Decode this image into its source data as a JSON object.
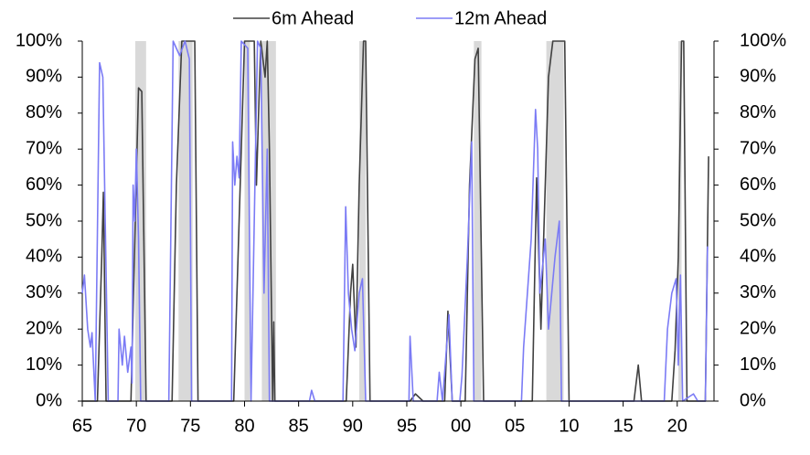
{
  "chart_data": {
    "type": "line",
    "xlim": [
      1965,
      2023.4
    ],
    "xticks": [
      {
        "value": 1965,
        "label": "65"
      },
      {
        "value": 1970,
        "label": "70"
      },
      {
        "value": 1975,
        "label": "75"
      },
      {
        "value": 1980,
        "label": "80"
      },
      {
        "value": 1985,
        "label": "85"
      },
      {
        "value": 1990,
        "label": "90"
      },
      {
        "value": 1995,
        "label": "95"
      },
      {
        "value": 2000,
        "label": "00"
      },
      {
        "value": 2005,
        "label": "05"
      },
      {
        "value": 2010,
        "label": "10"
      },
      {
        "value": 2015,
        "label": "15"
      },
      {
        "value": 2020,
        "label": "20"
      }
    ],
    "ylim": [
      0,
      100
    ],
    "yticks": [
      {
        "value": 0,
        "label": "0%"
      },
      {
        "value": 10,
        "label": "10%"
      },
      {
        "value": 20,
        "label": "20%"
      },
      {
        "value": 30,
        "label": "30%"
      },
      {
        "value": 40,
        "label": "40%"
      },
      {
        "value": 50,
        "label": "50%"
      },
      {
        "value": 60,
        "label": "60%"
      },
      {
        "value": 70,
        "label": "70%"
      },
      {
        "value": 80,
        "label": "80%"
      },
      {
        "value": 90,
        "label": "90%"
      },
      {
        "value": 100,
        "label": "100%"
      }
    ],
    "y2lim": [
      0,
      100
    ],
    "y2ticks": [
      {
        "value": 0,
        "label": "0%"
      },
      {
        "value": 10,
        "label": "10%"
      },
      {
        "value": 20,
        "label": "20%"
      },
      {
        "value": 30,
        "label": "30%"
      },
      {
        "value": 40,
        "label": "40%"
      },
      {
        "value": 50,
        "label": "50%"
      },
      {
        "value": 60,
        "label": "60%"
      },
      {
        "value": 70,
        "label": "70%"
      },
      {
        "value": 80,
        "label": "80%"
      },
      {
        "value": 90,
        "label": "90%"
      },
      {
        "value": 100,
        "label": "100%"
      }
    ],
    "shading_color": "#d9d9d9",
    "recessions": [
      [
        1969.9,
        1970.9
      ],
      [
        1973.9,
        1975.2
      ],
      [
        1980.0,
        1980.5
      ],
      [
        1981.6,
        1982.9
      ],
      [
        1990.6,
        1991.2
      ],
      [
        2001.2,
        2001.9
      ],
      [
        2007.9,
        2009.5
      ],
      [
        2020.1,
        2020.4
      ]
    ],
    "legend": "top",
    "series": [
      {
        "name": "6m Ahead",
        "color": "#404040",
        "x": [
          1965,
          1966.4,
          1966.8,
          1966.95,
          1967.2,
          1969.5,
          1969.9,
          1970.2,
          1970.5,
          1970.9,
          1973.3,
          1973.7,
          1974.2,
          1975.4,
          1975.7,
          1979.0,
          1979.4,
          1980.0,
          1980.9,
          1981.1,
          1981.5,
          1981.9,
          1982.1,
          1982.3,
          1982.6,
          1982.7,
          1982.8,
          1989.4,
          1989.8,
          1990.0,
          1990.3,
          1990.6,
          1991.0,
          1991.2,
          1991.6,
          1995.3,
          1995.8,
          1996.5,
          1998.5,
          1998.8,
          1999.2,
          2000.4,
          2000.8,
          2001.3,
          2001.6,
          2002.1,
          2006.6,
          2007.0,
          2007.4,
          2008.1,
          2008.5,
          2009.6,
          2010.0,
          2016.0,
          2016.4,
          2016.7,
          2019.5,
          2019.8,
          2020.1,
          2020.4,
          2020.6,
          2020.9,
          2022.6,
          2022.9
        ],
        "values": [
          0,
          0,
          40,
          58,
          0,
          0,
          50,
          87,
          86,
          0,
          0,
          60,
          100,
          100,
          0,
          0,
          40,
          100,
          100,
          60,
          100,
          90,
          100,
          70,
          0,
          22,
          0,
          0,
          30,
          38,
          15,
          60,
          100,
          100,
          0,
          0,
          2,
          0,
          0,
          25,
          0,
          0,
          60,
          95,
          98,
          0,
          0,
          62,
          20,
          90,
          100,
          100,
          0,
          0,
          10,
          0,
          0,
          14,
          40,
          100,
          100,
          0,
          0,
          68
        ]
      },
      {
        "name": "12m Ahead",
        "color": "#7b7bf5",
        "x": [
          1965,
          1965.2,
          1965.5,
          1965.75,
          1965.9,
          1966.2,
          1966.6,
          1966.9,
          1967.4,
          1968.3,
          1968.4,
          1968.7,
          1968.9,
          1969.2,
          1969.5,
          1969.6,
          1969.7,
          1969.85,
          1970.0,
          1970.2,
          1970.4,
          1973.0,
          1973.4,
          1974.0,
          1974.5,
          1974.9,
          1975.1,
          1978.8,
          1978.9,
          1979.1,
          1979.3,
          1979.5,
          1979.7,
          1980.3,
          1980.6,
          1981.2,
          1981.5,
          1981.8,
          1982.1,
          1982.3,
          1986.0,
          1986.2,
          1986.5,
          1989.1,
          1989.35,
          1989.6,
          1989.9,
          1990.2,
          1990.6,
          1990.9,
          1991.2,
          1995.2,
          1995.3,
          1995.6,
          1997.8,
          1998.0,
          1998.3,
          1998.9,
          1999.2,
          1999.9,
          2000.1,
          2000.6,
          2001.0,
          2001.2,
          2005.6,
          2005.8,
          2006.5,
          2006.9,
          2007.1,
          2007.3,
          2007.8,
          2008.1,
          2008.7,
          2009.1,
          2009.3,
          2018.8,
          2019.1,
          2019.5,
          2019.9,
          2020.1,
          2020.3,
          2020.5,
          2021.5,
          2021.9,
          2022.6,
          2022.8
        ],
        "values": [
          30,
          35,
          20,
          15,
          19,
          0,
          94,
          90,
          0,
          0,
          20,
          10,
          18,
          8,
          15,
          5,
          60,
          50,
          70,
          45,
          0,
          0,
          100,
          96,
          100,
          95,
          0,
          0,
          72,
          60,
          68,
          62,
          100,
          98,
          0,
          100,
          98,
          30,
          70,
          0,
          0,
          3,
          0,
          0,
          54,
          30,
          20,
          14,
          30,
          34,
          0,
          0,
          18,
          0,
          0,
          8,
          0,
          24,
          0,
          0,
          7,
          40,
          72,
          0,
          0,
          15,
          45,
          81,
          70,
          30,
          45,
          20,
          40,
          50,
          0,
          0,
          20,
          30,
          34,
          10,
          35,
          0,
          2,
          0,
          0,
          43
        ]
      }
    ]
  }
}
